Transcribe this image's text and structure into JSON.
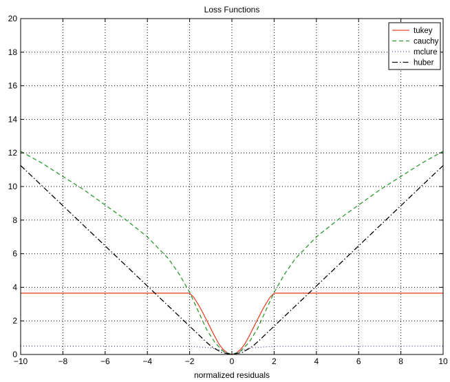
{
  "chart_data": {
    "type": "line",
    "title": "Loss Functions",
    "xlabel": "normalized residuals",
    "ylabel": "",
    "xlim": [
      -10,
      10
    ],
    "ylim": [
      0,
      20
    ],
    "xticks": [
      -10,
      -8,
      -6,
      -4,
      -2,
      0,
      2,
      4,
      6,
      8,
      10
    ],
    "yticks": [
      0,
      2,
      4,
      6,
      8,
      10,
      12,
      14,
      16,
      18,
      20
    ],
    "grid": true,
    "legend_position": "top-right",
    "series": [
      {
        "name": "tukey",
        "color": "#e8442a",
        "dash": "solid",
        "x": [
          -10,
          -2,
          -1.8,
          -1.6,
          -1.4,
          -1.2,
          -1.0,
          -0.8,
          -0.6,
          -0.4,
          -0.2,
          0,
          0.2,
          0.4,
          0.6,
          0.8,
          1.0,
          1.2,
          1.4,
          1.6,
          1.8,
          2,
          10
        ],
        "y": [
          3.65,
          3.65,
          3.4,
          3.0,
          2.55,
          2.05,
          1.55,
          1.05,
          0.6,
          0.28,
          0.08,
          0,
          0.08,
          0.28,
          0.6,
          1.05,
          1.55,
          2.05,
          2.55,
          3.0,
          3.4,
          3.65,
          3.65
        ]
      },
      {
        "name": "cauchy",
        "color": "#2a9a2a",
        "dash": "dashed",
        "x": [
          -10,
          -9,
          -8,
          -7,
          -6,
          -5,
          -4,
          -3,
          -2.5,
          -2,
          -1.6,
          -1.2,
          -0.8,
          -0.4,
          0,
          0.4,
          0.8,
          1.2,
          1.6,
          2,
          2.5,
          3,
          4,
          5,
          6,
          7,
          8,
          9,
          10
        ],
        "y": [
          12.1,
          11.4,
          10.6,
          9.8,
          8.9,
          8.0,
          7.0,
          5.7,
          4.8,
          3.7,
          2.6,
          1.5,
          0.7,
          0.18,
          0,
          0.18,
          0.7,
          1.5,
          2.6,
          3.7,
          4.8,
          5.7,
          7.0,
          8.0,
          8.9,
          9.8,
          10.6,
          11.4,
          12.1
        ]
      },
      {
        "name": "mclure",
        "color": "#3a4aa0",
        "dash": "dotted",
        "x": [
          -10,
          -2,
          -1.5,
          -1.0,
          -0.5,
          0,
          0.5,
          1.0,
          1.5,
          2,
          10
        ],
        "y": [
          0.5,
          0.48,
          0.45,
          0.4,
          0.25,
          0,
          0.25,
          0.4,
          0.45,
          0.48,
          0.5
        ]
      },
      {
        "name": "huber",
        "color": "#000000",
        "dash": "dashdot",
        "x": [
          -10,
          -1.345,
          -1.0,
          -0.5,
          0,
          0.5,
          1.0,
          1.345,
          10
        ],
        "y": [
          11.25,
          0.9,
          0.5,
          0.125,
          0,
          0.125,
          0.5,
          0.9,
          11.25
        ]
      }
    ]
  }
}
